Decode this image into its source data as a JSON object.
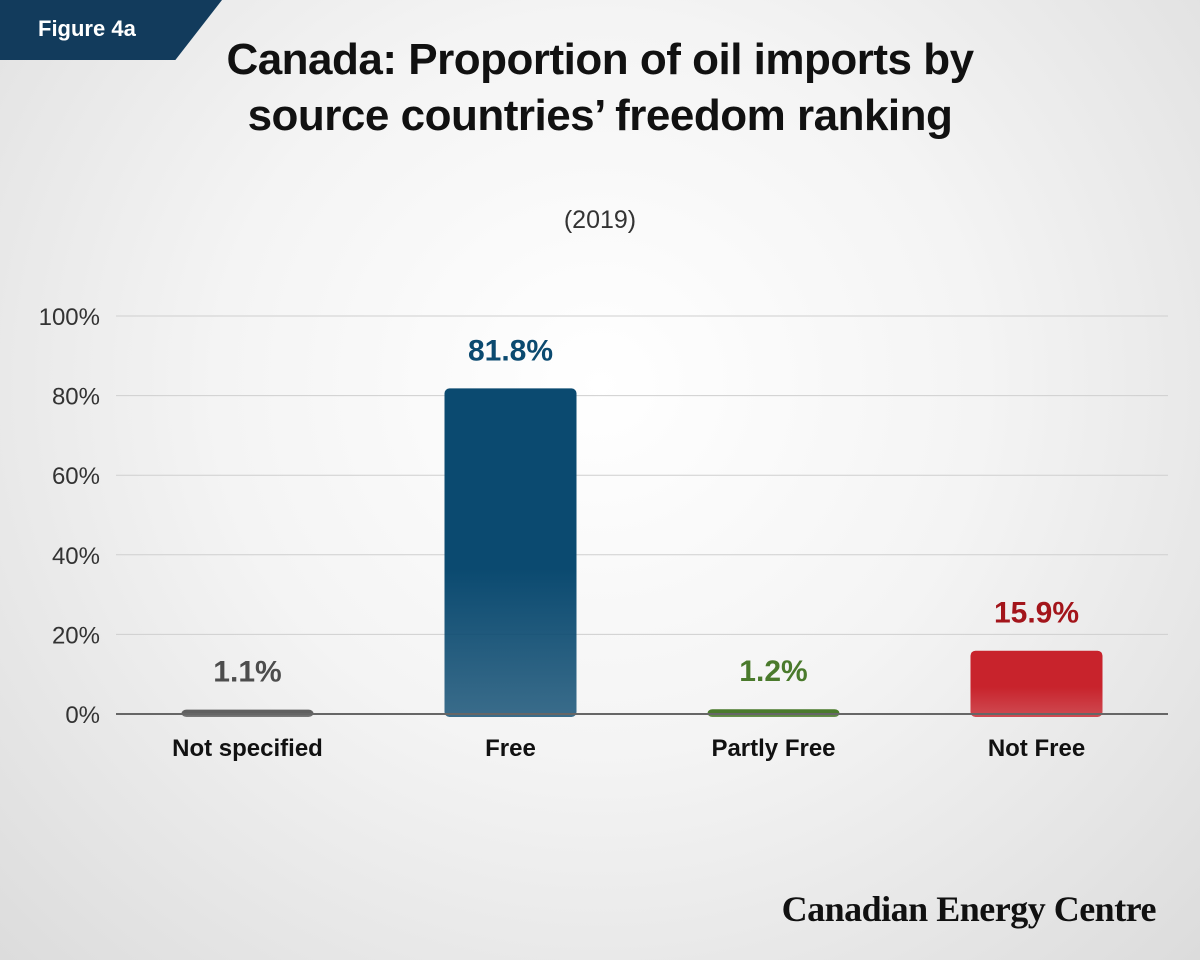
{
  "figure_tag": "Figure 4a",
  "title": "Canada: Proportion of oil imports by source countries’ freedom ranking",
  "subtitle": "(2019)",
  "brand": "Canadian Energy Centre",
  "colors": {
    "tag_bg": "#123b5c",
    "not_specified": "#606060",
    "free": "#0b4a70",
    "partly_free": "#4a7a2c",
    "not_free": "#c8232c"
  },
  "chart_data": {
    "type": "bar",
    "title": "Canada: Proportion of oil imports by source countries’ freedom ranking",
    "subtitle": "(2019)",
    "categories": [
      "Not specified",
      "Free",
      "Partly Free",
      "Not Free"
    ],
    "values": [
      1.1,
      81.8,
      1.2,
      15.9
    ],
    "value_labels": [
      "1.1%",
      "81.8%",
      "1.2%",
      "15.9%"
    ],
    "bar_colors": [
      "#606060",
      "#0b4a70",
      "#4a7a2c",
      "#c8232c"
    ],
    "label_colors": [
      "#4d4d4d",
      "#0b4a70",
      "#4a7a2c",
      "#a3151b"
    ],
    "yticks": [
      "0%",
      "20%",
      "40%",
      "60%",
      "80%",
      "100%"
    ],
    "ylim": [
      0,
      100
    ],
    "grid": true,
    "legend": "none"
  }
}
